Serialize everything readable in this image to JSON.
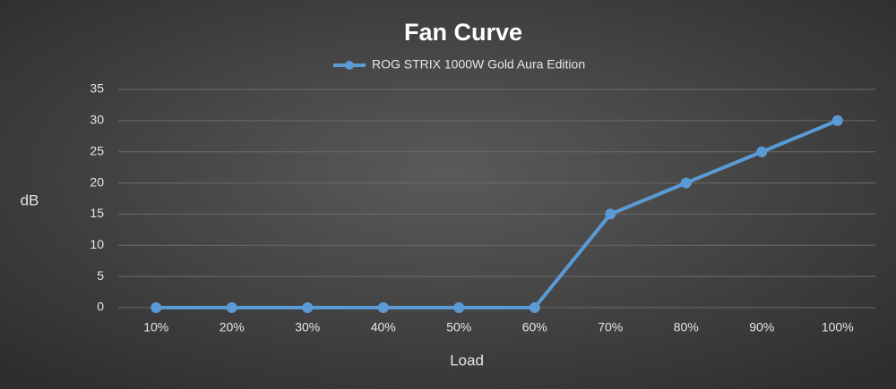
{
  "chart_data": {
    "type": "line",
    "title": "Fan Curve",
    "x_label": "Load",
    "y_label": "dB",
    "categories": [
      "10%",
      "20%",
      "30%",
      "40%",
      "50%",
      "60%",
      "70%",
      "80%",
      "90%",
      "100%"
    ],
    "series": [
      {
        "name": "ROG STRIX 1000W Gold Aura Edition",
        "color": "#5b9bd5",
        "values": [
          0,
          0,
          0,
          0,
          0,
          0,
          15,
          20,
          25,
          30
        ]
      }
    ],
    "ylim": [
      0,
      35
    ],
    "yticks": [
      0,
      5,
      10,
      15,
      20,
      25,
      30,
      35
    ],
    "grid": true,
    "legend": "top"
  }
}
